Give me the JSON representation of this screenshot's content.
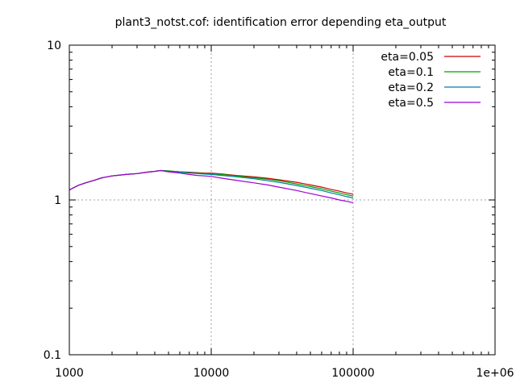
{
  "chart_data": {
    "type": "line",
    "title": "plant3_notst.cof: identification error depending eta_output",
    "xlabel": "",
    "ylabel": "",
    "x_scale": "log",
    "y_scale": "log",
    "xlim": [
      1000,
      1000000
    ],
    "ylim": [
      0.1,
      10
    ],
    "x_ticks": [
      {
        "value": 1000,
        "label": "1000"
      },
      {
        "value": 10000,
        "label": "10000"
      },
      {
        "value": 100000,
        "label": "100000"
      },
      {
        "value": 1000000,
        "label": "1e+06"
      }
    ],
    "y_ticks": [
      {
        "value": 0.1,
        "label": "0.1"
      },
      {
        "value": 1,
        "label": "1"
      },
      {
        "value": 10,
        "label": "10"
      }
    ],
    "grid": true,
    "legend_position": "top-right",
    "series": [
      {
        "name": "eta=0.05",
        "color": "#cc0000",
        "points": [
          [
            1000,
            1.16
          ],
          [
            1150,
            1.24
          ],
          [
            1300,
            1.29
          ],
          [
            1500,
            1.34
          ],
          [
            1700,
            1.39
          ],
          [
            2000,
            1.43
          ],
          [
            2500,
            1.46
          ],
          [
            3000,
            1.48
          ],
          [
            3500,
            1.51
          ],
          [
            4000,
            1.53
          ],
          [
            4400,
            1.55
          ],
          [
            5000,
            1.54
          ],
          [
            6000,
            1.52
          ],
          [
            7000,
            1.51
          ],
          [
            8000,
            1.5
          ],
          [
            9000,
            1.49
          ],
          [
            10000,
            1.49
          ],
          [
            12000,
            1.47
          ],
          [
            15000,
            1.44
          ],
          [
            20000,
            1.41
          ],
          [
            25000,
            1.38
          ],
          [
            30000,
            1.35
          ],
          [
            40000,
            1.3
          ],
          [
            50000,
            1.25
          ],
          [
            60000,
            1.21
          ],
          [
            70000,
            1.17
          ],
          [
            80000,
            1.14
          ],
          [
            90000,
            1.11
          ],
          [
            100000,
            1.09
          ]
        ]
      },
      {
        "name": "eta=0.1",
        "color": "#00a000",
        "points": [
          [
            1000,
            1.16
          ],
          [
            1150,
            1.24
          ],
          [
            1300,
            1.29
          ],
          [
            1500,
            1.34
          ],
          [
            1700,
            1.39
          ],
          [
            2000,
            1.43
          ],
          [
            2500,
            1.46
          ],
          [
            3000,
            1.48
          ],
          [
            3500,
            1.51
          ],
          [
            4000,
            1.53
          ],
          [
            4400,
            1.55
          ],
          [
            5000,
            1.54
          ],
          [
            6000,
            1.52
          ],
          [
            7000,
            1.5
          ],
          [
            8000,
            1.49
          ],
          [
            9000,
            1.48
          ],
          [
            10000,
            1.48
          ],
          [
            12000,
            1.46
          ],
          [
            15000,
            1.43
          ],
          [
            20000,
            1.39
          ],
          [
            25000,
            1.36
          ],
          [
            30000,
            1.33
          ],
          [
            40000,
            1.27
          ],
          [
            50000,
            1.22
          ],
          [
            60000,
            1.18
          ],
          [
            70000,
            1.14
          ],
          [
            80000,
            1.11
          ],
          [
            90000,
            1.08
          ],
          [
            100000,
            1.06
          ]
        ]
      },
      {
        "name": "eta=0.2",
        "color": "#0080a0",
        "points": [
          [
            1000,
            1.16
          ],
          [
            1150,
            1.24
          ],
          [
            1300,
            1.29
          ],
          [
            1500,
            1.34
          ],
          [
            1700,
            1.39
          ],
          [
            2000,
            1.43
          ],
          [
            2500,
            1.46
          ],
          [
            3000,
            1.48
          ],
          [
            3500,
            1.51
          ],
          [
            4000,
            1.53
          ],
          [
            4400,
            1.55
          ],
          [
            5000,
            1.53
          ],
          [
            6000,
            1.51
          ],
          [
            7000,
            1.49
          ],
          [
            8000,
            1.48
          ],
          [
            9000,
            1.47
          ],
          [
            10000,
            1.46
          ],
          [
            12000,
            1.44
          ],
          [
            15000,
            1.41
          ],
          [
            20000,
            1.37
          ],
          [
            25000,
            1.33
          ],
          [
            30000,
            1.3
          ],
          [
            40000,
            1.24
          ],
          [
            50000,
            1.19
          ],
          [
            60000,
            1.15
          ],
          [
            70000,
            1.11
          ],
          [
            80000,
            1.08
          ],
          [
            90000,
            1.05
          ],
          [
            100000,
            1.03
          ]
        ]
      },
      {
        "name": "eta=0.5",
        "color": "#a000d0",
        "points": [
          [
            1000,
            1.16
          ],
          [
            1150,
            1.24
          ],
          [
            1300,
            1.29
          ],
          [
            1500,
            1.34
          ],
          [
            1700,
            1.39
          ],
          [
            2000,
            1.43
          ],
          [
            2500,
            1.46
          ],
          [
            3000,
            1.48
          ],
          [
            3500,
            1.51
          ],
          [
            4000,
            1.53
          ],
          [
            4400,
            1.55
          ],
          [
            5000,
            1.52
          ],
          [
            6000,
            1.49
          ],
          [
            7000,
            1.46
          ],
          [
            8000,
            1.44
          ],
          [
            9000,
            1.43
          ],
          [
            10000,
            1.42
          ],
          [
            12000,
            1.38
          ],
          [
            15000,
            1.34
          ],
          [
            20000,
            1.29
          ],
          [
            25000,
            1.25
          ],
          [
            30000,
            1.21
          ],
          [
            40000,
            1.15
          ],
          [
            50000,
            1.1
          ],
          [
            60000,
            1.06
          ],
          [
            70000,
            1.03
          ],
          [
            80000,
            1.0
          ],
          [
            90000,
            0.98
          ],
          [
            100000,
            0.96
          ]
        ]
      }
    ]
  }
}
